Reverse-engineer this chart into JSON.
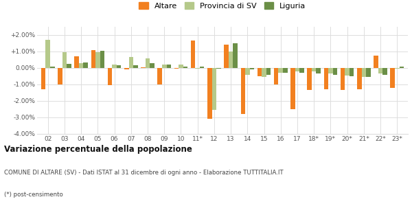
{
  "categories": [
    "02",
    "03",
    "04",
    "05",
    "06",
    "07",
    "08",
    "09",
    "10",
    "11*",
    "12",
    "13",
    "14",
    "15",
    "16",
    "17",
    "18*",
    "19*",
    "20*",
    "21*",
    "22*",
    "23*"
  ],
  "altare": [
    -1.3,
    -1.0,
    0.7,
    1.1,
    -1.05,
    -0.1,
    0.05,
    -1.0,
    -0.05,
    1.65,
    -3.1,
    1.4,
    -2.8,
    -0.5,
    -1.0,
    -2.5,
    -1.35,
    -1.3,
    -1.35,
    -1.3,
    0.75,
    -1.2
  ],
  "provincia_sv": [
    1.7,
    0.95,
    0.3,
    0.95,
    0.2,
    0.65,
    0.6,
    0.2,
    0.2,
    -0.05,
    -2.55,
    1.0,
    -0.4,
    -0.55,
    -0.3,
    -0.2,
    -0.2,
    -0.35,
    -0.45,
    -0.55,
    -0.35,
    -0.05
  ],
  "liguria": [
    0.1,
    0.25,
    0.35,
    1.05,
    0.15,
    0.15,
    0.3,
    0.2,
    0.1,
    0.1,
    -0.05,
    1.5,
    -0.1,
    -0.4,
    -0.3,
    -0.3,
    -0.35,
    -0.4,
    -0.5,
    -0.55,
    -0.4,
    0.1
  ],
  "altare_color": "#f28020",
  "provincia_color": "#b5c98a",
  "liguria_color": "#6b8f47",
  "background_color": "#ffffff",
  "grid_color": "#dddddd",
  "ylim": [
    -4.0,
    2.5
  ],
  "yticks": [
    -4.0,
    -3.0,
    -2.0,
    -1.0,
    0.0,
    1.0,
    2.0
  ],
  "ytick_labels": [
    "-4.00%",
    "-3.00%",
    "-2.00%",
    "-1.00%",
    "0.00%",
    "+1.00%",
    "+2.00%"
  ],
  "title": "Variazione percentuale della popolazione",
  "subtitle": "COMUNE DI ALTARE (SV) - Dati ISTAT al 31 dicembre di ogni anno - Elaborazione TUTTITALIA.IT",
  "footnote": "(*) post-censimento",
  "legend_labels": [
    "Altare",
    "Provincia di SV",
    "Liguria"
  ],
  "bar_width": 0.27
}
